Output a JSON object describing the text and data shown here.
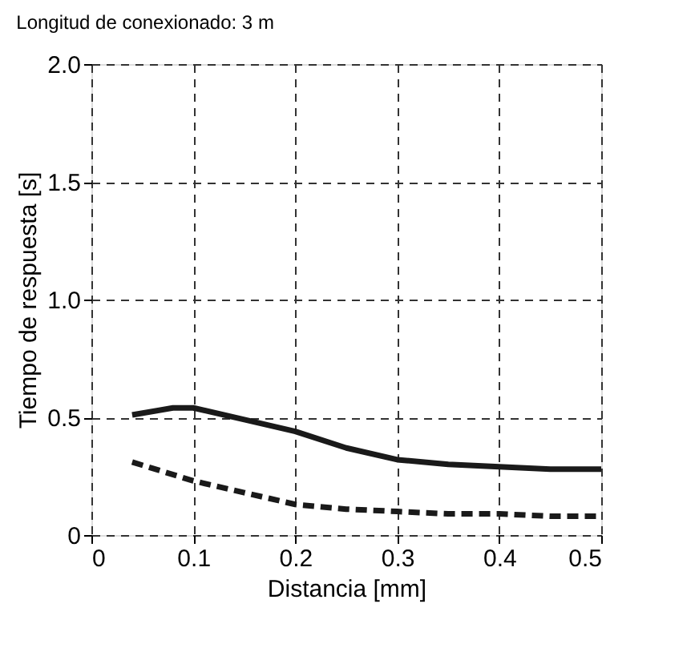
{
  "chart_data": {
    "type": "line",
    "title": "Longitud de conexionado: 3 m",
    "xlabel": "Distancia [mm]",
    "ylabel": "Tiempo de respuesta [s]",
    "xlim": [
      0,
      0.5
    ],
    "xticks": [
      0,
      0.1,
      0.2,
      0.3,
      0.4,
      0.5
    ],
    "ylim": [
      0,
      2.0
    ],
    "yticks": [
      0,
      0.5,
      {
        "value": 1.0,
        "label": "1.0"
      },
      1.5,
      {
        "value": 2.0,
        "label": "2.0"
      }
    ],
    "grid": true,
    "marker": "none",
    "series": [
      {
        "color": "#1a1a1a",
        "line_style": "solid",
        "x": [
          0.04,
          0.08,
          0.1,
          0.15,
          0.2,
          0.25,
          0.3,
          0.35,
          0.4,
          0.45,
          0.5
        ],
        "values": [
          0.51,
          0.54,
          0.54,
          0.49,
          0.44,
          0.37,
          0.32,
          0.3,
          0.29,
          0.28,
          0.28
        ]
      },
      {
        "color": "#1a1a1a",
        "line_style": "dashed",
        "x": [
          0.04,
          0.1,
          0.15,
          0.2,
          0.25,
          0.3,
          0.35,
          0.4,
          0.45,
          0.5
        ],
        "values": [
          0.31,
          0.23,
          0.18,
          0.13,
          0.11,
          0.1,
          0.09,
          0.09,
          0.08,
          0.08
        ]
      }
    ]
  }
}
